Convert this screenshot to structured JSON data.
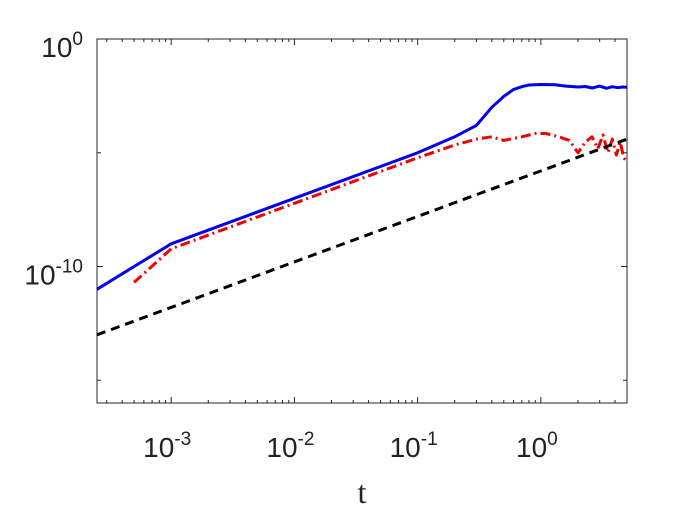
{
  "chart_data": {
    "type": "line",
    "title": "",
    "xlabel": "t",
    "ylabel": "",
    "xscale": "log",
    "yscale": "log",
    "xlim": [
      0.00025,
      5
    ],
    "ylim": [
      1e-16,
      1
    ],
    "x_ticks": [
      {
        "value": 0.001,
        "base": "10",
        "exp": "-3"
      },
      {
        "value": 0.01,
        "base": "10",
        "exp": "-2"
      },
      {
        "value": 0.1,
        "base": "10",
        "exp": "-1"
      },
      {
        "value": 1,
        "base": "10",
        "exp": "0"
      }
    ],
    "y_ticks": [
      {
        "value": 1,
        "base": "10",
        "exp": "0"
      },
      {
        "value": 1e-10,
        "base": "10",
        "exp": "-10"
      }
    ],
    "y_minor_ticks": [
      1e-05,
      1e-15
    ],
    "grid": false,
    "legend": "none",
    "series": [
      {
        "color": "#0000ee",
        "style": "solid",
        "x": [
          0.00025,
          0.001,
          0.01,
          0.1,
          0.2,
          0.3,
          0.4,
          0.5,
          0.6,
          0.7,
          0.8,
          1.0,
          1.3,
          1.6,
          2.0,
          2.3,
          2.6,
          3.0,
          3.4,
          3.8,
          4.2,
          4.6,
          5.0
        ],
        "y": [
          1e-11,
          1e-09,
          1e-07,
          1e-05,
          5e-05,
          0.00016,
          0.001,
          0.003,
          0.006,
          0.008,
          0.0095,
          0.01,
          0.0098,
          0.0085,
          0.0078,
          0.0082,
          0.007,
          0.0085,
          0.0068,
          0.008,
          0.0072,
          0.0078,
          0.0076
        ]
      },
      {
        "color": "#ee0000",
        "style": "dashdot",
        "x": [
          0.0005,
          0.001,
          0.01,
          0.1,
          0.2,
          0.3,
          0.4,
          0.5,
          0.7,
          0.9,
          1.1,
          1.4,
          1.7,
          2.0,
          2.3,
          2.6,
          2.9,
          3.2,
          3.5,
          3.8,
          4.1,
          4.4,
          4.7,
          5.0
        ],
        "y": [
          2e-11,
          6e-10,
          6e-08,
          6e-06,
          2.2e-05,
          4e-05,
          5e-05,
          3.5e-05,
          5e-05,
          7e-05,
          7e-05,
          5e-05,
          3.5e-05,
          1e-05,
          3e-05,
          5e-05,
          1.5e-05,
          6e-05,
          1e-05,
          4e-05,
          8e-06,
          3e-05,
          6e-06,
          4e-06
        ]
      },
      {
        "color": "#000000",
        "style": "dashed",
        "x": [
          0.00025,
          5.0
        ],
        "y": [
          1e-13,
          4e-05
        ]
      }
    ]
  }
}
